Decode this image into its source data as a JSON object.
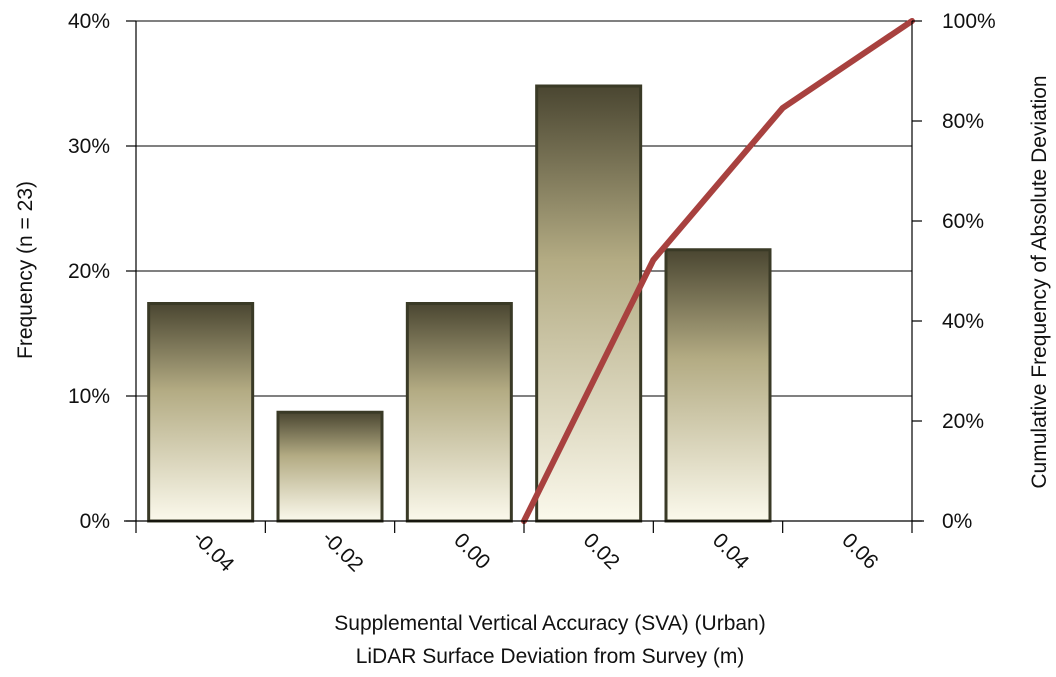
{
  "chart_data": {
    "type": "bar",
    "categories": [
      "-0.04",
      "-0.02",
      "0.00",
      "0.02",
      "0.04",
      "0.06"
    ],
    "series": [
      {
        "axis": "left",
        "type": "bar",
        "values": [
          17.4,
          8.7,
          17.4,
          34.8,
          21.7,
          0
        ]
      },
      {
        "axis": "right",
        "type": "line",
        "values": [
          null,
          null,
          0,
          52.2,
          82.6,
          100
        ]
      }
    ],
    "xlabel": [
      "Supplemental Vertical Accuracy (SVA) (Urban)",
      "LiDAR Surface Deviation from Survey (m)"
    ],
    "ylabel": "Frequency (n = 23)",
    "y2label": "Cumulative Frequency of Absolute Deviation",
    "ylim": [
      0,
      40
    ],
    "y2lim": [
      0,
      100
    ],
    "yticks": [
      "0%",
      "10%",
      "20%",
      "30%",
      "40%"
    ],
    "y2ticks": [
      "0%",
      "20%",
      "40%",
      "60%",
      "80%",
      "100%"
    ],
    "grid": "horizontal",
    "colors": {
      "bar_top": "#4a4631",
      "bar_bottom": "#fbf9ec",
      "bar_stroke": "#3a3a26",
      "line": "#a8413f"
    }
  }
}
